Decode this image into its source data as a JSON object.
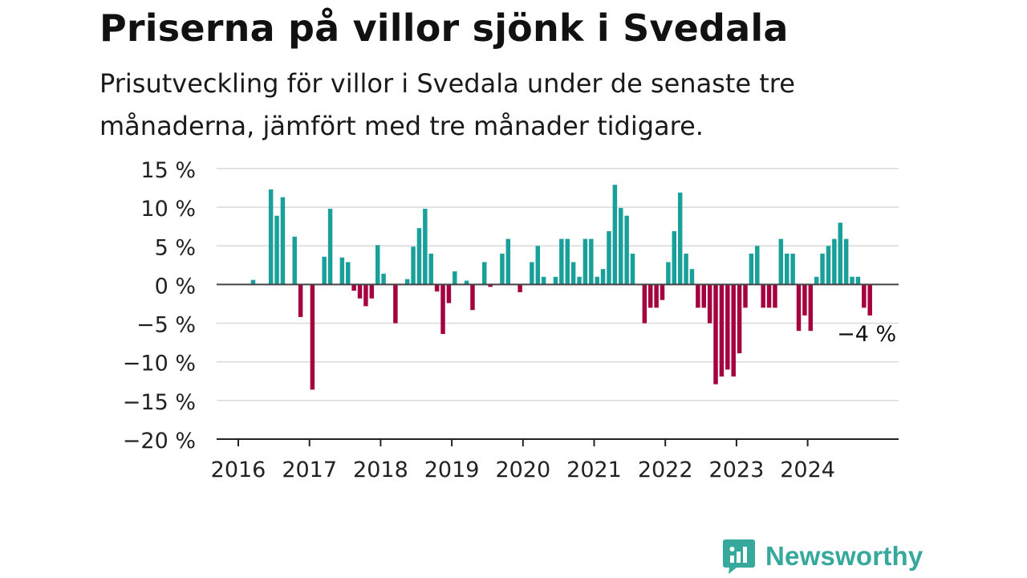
{
  "header": {
    "title": "Priserna på villor sjönk i Svedala",
    "subtitle": "Prisutveckling för villor i Svedala under de senaste tre månaderna, jämfört med tre månader tidigare."
  },
  "brand": {
    "name": "Newsworthy",
    "icon": "newsworthy-logo-icon",
    "color": "#37a89c"
  },
  "colors": {
    "positive": "#1aa09a",
    "negative": "#a5003f",
    "grid": "#d9d9d9",
    "axis": "#222222"
  },
  "chart_data": {
    "type": "bar",
    "title": "Priserna på villor sjönk i Svedala",
    "subtitle": "Prisutveckling för villor i Svedala under de senaste tre månaderna, jämfört med tre månader tidigare.",
    "xlabel": "",
    "ylabel": "",
    "unit": "%",
    "grid": true,
    "legend": "none",
    "ylim": [
      -20,
      15
    ],
    "yticks": [
      15,
      10,
      5,
      0,
      -5,
      -10,
      -15,
      -20
    ],
    "ytick_labels": [
      "15 %",
      "10 %",
      "5 %",
      "0 %",
      "−5 %",
      "−10 %",
      "−15 %",
      "−20 %"
    ],
    "xticks": [
      "2016",
      "2017",
      "2018",
      "2019",
      "2020",
      "2021",
      "2022",
      "2023",
      "2024"
    ],
    "x_start": "2016-01",
    "x_end": "2024-12",
    "categories": [
      "2016-01",
      "2016-02",
      "2016-03",
      "2016-04",
      "2016-05",
      "2016-06",
      "2016-07",
      "2016-08",
      "2016-09",
      "2016-10",
      "2016-11",
      "2016-12",
      "2017-01",
      "2017-02",
      "2017-03",
      "2017-04",
      "2017-05",
      "2017-06",
      "2017-07",
      "2017-08",
      "2017-09",
      "2017-10",
      "2017-11",
      "2017-12",
      "2018-01",
      "2018-02",
      "2018-03",
      "2018-04",
      "2018-05",
      "2018-06",
      "2018-07",
      "2018-08",
      "2018-09",
      "2018-10",
      "2018-11",
      "2018-12",
      "2019-01",
      "2019-02",
      "2019-03",
      "2019-04",
      "2019-05",
      "2019-06",
      "2019-07",
      "2019-08",
      "2019-09",
      "2019-10",
      "2019-11",
      "2019-12",
      "2020-01",
      "2020-02",
      "2020-03",
      "2020-04",
      "2020-05",
      "2020-06",
      "2020-07",
      "2020-08",
      "2020-09",
      "2020-10",
      "2020-11",
      "2020-12",
      "2021-01",
      "2021-02",
      "2021-03",
      "2021-04",
      "2021-05",
      "2021-06",
      "2021-07",
      "2021-08",
      "2021-09",
      "2021-10",
      "2021-11",
      "2021-12",
      "2022-01",
      "2022-02",
      "2022-03",
      "2022-04",
      "2022-05",
      "2022-06",
      "2022-07",
      "2022-08",
      "2022-09",
      "2022-10",
      "2022-11",
      "2022-12",
      "2023-01",
      "2023-02",
      "2023-03",
      "2023-04",
      "2023-05",
      "2023-06",
      "2023-07",
      "2023-08",
      "2023-09",
      "2023-10",
      "2023-11",
      "2023-12",
      "2024-01",
      "2024-02",
      "2024-03",
      "2024-04",
      "2024-05",
      "2024-06",
      "2024-07",
      "2024-08",
      "2024-09",
      "2024-10",
      "2024-11",
      "2024-12"
    ],
    "values": [
      null,
      null,
      0.6,
      null,
      null,
      12.3,
      8.9,
      11.3,
      null,
      6.2,
      -4.2,
      null,
      -13.6,
      null,
      3.6,
      9.8,
      null,
      3.5,
      2.9,
      -0.8,
      -1.8,
      -2.8,
      -1.8,
      5.1,
      1.4,
      null,
      -5.0,
      null,
      0.7,
      4.9,
      7.3,
      9.8,
      4.0,
      -0.9,
      -6.4,
      -2.4,
      1.7,
      null,
      0.5,
      -3.3,
      null,
      2.9,
      -0.3,
      null,
      4.0,
      5.9,
      null,
      -1.0,
      null,
      2.9,
      5.0,
      1.0,
      null,
      1.0,
      5.9,
      5.9,
      2.9,
      1.0,
      5.9,
      5.9,
      1.0,
      2.0,
      6.9,
      12.9,
      9.9,
      8.9,
      4.0,
      null,
      -5.0,
      -3.0,
      -3.0,
      -2.0,
      2.9,
      6.9,
      11.9,
      4.0,
      2.0,
      -3.0,
      -3.0,
      -5.0,
      -12.9,
      -11.9,
      -11.0,
      -11.9,
      -8.9,
      -3.0,
      4.0,
      5.0,
      -3.0,
      -3.0,
      -3.0,
      5.9,
      4.0,
      4.0,
      -6.0,
      -4.0,
      -6.0,
      1.0,
      4.0,
      5.0,
      5.9,
      8.0,
      5.9,
      1.0,
      1.0,
      -3.0,
      -4.0,
      null
    ],
    "annotation": {
      "label": "−4 %",
      "category": "2024-11",
      "value": -4
    }
  }
}
